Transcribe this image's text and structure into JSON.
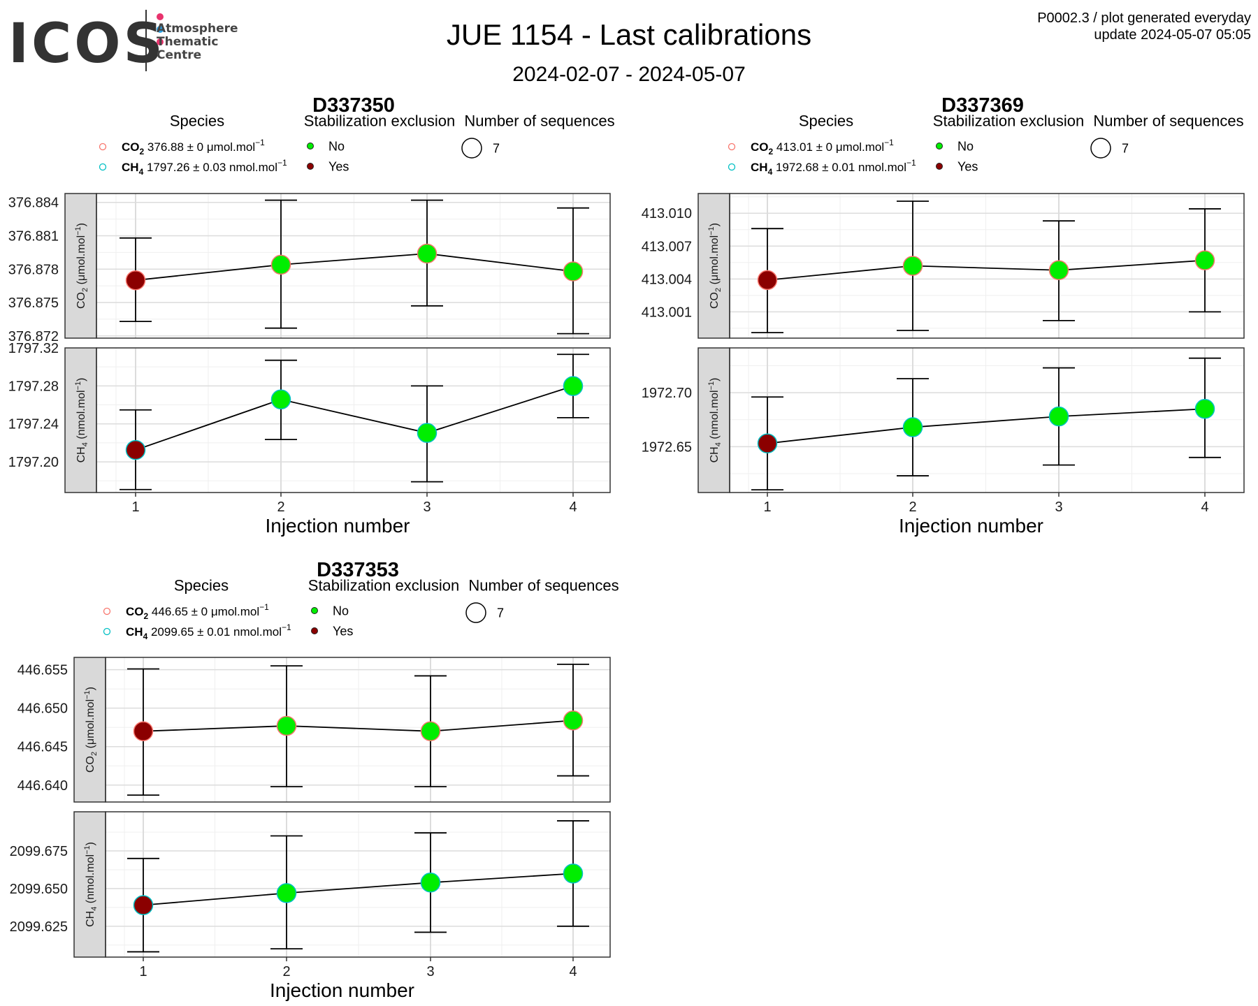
{
  "header": {
    "logo_text": "ICOS",
    "logo_subtitle": [
      "Atmosphere",
      "Thematic",
      "Centre"
    ],
    "title": "JUE 1154 - Last calibrations",
    "subtitle": "2024-02-07 - 2024-05-07",
    "meta_line1": "P0002.3 / plot generated everyday",
    "meta_line2": "update  2024-05-07 05:05"
  },
  "colors": {
    "logo_dots": [
      "#e8336d",
      "#2a9ee0",
      "#e8336d"
    ],
    "not_excluded": "#00ee00",
    "excluded": "#8b0000",
    "co2_ring": "#f8766d",
    "ch4_ring": "#00bfc4"
  },
  "legend_text": {
    "species_title": "Species",
    "stab_title": "Stabilization exclusion",
    "nseq_title": "Number of sequences",
    "stab_no": "No",
    "stab_yes": "Yes",
    "co2_name": "CO",
    "co2_sub": "2",
    "ch4_name": "CH",
    "ch4_sub": "4",
    "co2_axis_label": "CO",
    "co2_axis_unit": " (μmol.mol",
    "ch4_axis_unit": " (nmol.mol",
    "sup": "−1",
    "close": ")",
    "unit_sup": "−1",
    "xlabel": "Injection number"
  },
  "chart_data": [
    {
      "type": "scatter",
      "cylinder": "D337350",
      "legend": {
        "co2_value": "376.88 ± 0 μmol.mol",
        "ch4_value": "1797.26 ± 0.03 nmol.mol",
        "nseq": "7"
      },
      "x": [
        1,
        2,
        3,
        4
      ],
      "xlabel": "Injection number",
      "co2": {
        "ylabel": "CO2 (μmol.mol−1)",
        "yticks": [
          "376.872",
          "376.875",
          "376.878",
          "376.881",
          "376.884"
        ],
        "ylim": [
          376.8718,
          376.8848
        ],
        "y": [
          376.877,
          376.8784,
          376.8794,
          376.8778
        ],
        "err_low": [
          376.8733,
          376.8727,
          376.8747,
          376.8722
        ],
        "err_high": [
          376.8808,
          376.8842,
          376.8842,
          376.8835
        ],
        "excluded": [
          true,
          false,
          false,
          false
        ]
      },
      "ch4": {
        "ylabel": "CH4 (nmol.mol−1)",
        "yticks": [
          "1797.20",
          "1797.24",
          "1797.28",
          "1797.32"
        ],
        "ylim": [
          1797.1677,
          1797.32
        ],
        "y": [
          1797.2125,
          1797.2657,
          1797.2305,
          1797.2798
        ],
        "err_low": [
          1797.1708,
          1797.2235,
          1797.179,
          1797.2465
        ],
        "err_high": [
          1797.2547,
          1797.307,
          1797.28,
          1797.3132
        ],
        "excluded": [
          true,
          false,
          false,
          false
        ]
      }
    },
    {
      "type": "scatter",
      "cylinder": "D337369",
      "legend": {
        "co2_value": "413.01 ± 0 μmol.mol",
        "ch4_value": "1972.68 ± 0.01 nmol.mol",
        "nseq": "7"
      },
      "x": [
        1,
        2,
        3,
        4
      ],
      "xlabel": "Injection number",
      "co2": {
        "ylabel": "CO2 (μmol.mol−1)",
        "yticks": [
          "413.001",
          "413.004",
          "413.007",
          "413.010"
        ],
        "ylim": [
          412.9986,
          413.0118
        ],
        "y": [
          413.0039,
          413.0052,
          413.0048,
          413.0057
        ],
        "err_low": [
          412.9991,
          412.9993,
          413.0002,
          413.001
        ],
        "err_high": [
          413.0086,
          413.0111,
          413.0093,
          413.0104
        ],
        "excluded": [
          true,
          false,
          false,
          false
        ]
      },
      "ch4": {
        "ylabel": "CH4 (nmol.mol−1)",
        "yticks": [
          "1972.65",
          "1972.70"
        ],
        "ylim": [
          1972.6075,
          1972.7415
        ],
        "y": [
          1972.653,
          1972.668,
          1972.678,
          1972.685
        ],
        "err_low": [
          1972.61,
          1972.623,
          1972.633,
          1972.64
        ],
        "err_high": [
          1972.696,
          1972.713,
          1972.723,
          1972.732
        ],
        "excluded": [
          true,
          false,
          false,
          false
        ]
      }
    },
    {
      "type": "scatter",
      "cylinder": "D337353",
      "legend": {
        "co2_value": "446.65 ± 0 μmol.mol",
        "ch4_value": "2099.65 ± 0.01 nmol.mol",
        "nseq": "7"
      },
      "x": [
        1,
        2,
        3,
        4
      ],
      "xlabel": "Injection number",
      "co2": {
        "ylabel": "CO2 (μmol.mol−1)",
        "yticks": [
          "446.640",
          "446.645",
          "446.650",
          "446.655"
        ],
        "ylim": [
          446.6378,
          446.6566
        ],
        "y": [
          446.647,
          446.6477,
          446.647,
          446.6484
        ],
        "err_low": [
          446.6387,
          446.6398,
          446.6398,
          446.6412
        ],
        "err_high": [
          446.6551,
          446.6555,
          446.6542,
          446.6557
        ],
        "excluded": [
          true,
          false,
          false,
          false
        ]
      },
      "ch4": {
        "ylabel": "CH4 (nmol.mol−1)",
        "yticks": [
          "2099.625",
          "2099.650",
          "2099.675"
        ],
        "ylim": [
          2099.6045,
          2099.701
        ],
        "y": [
          2099.639,
          2099.647,
          2099.654,
          2099.66
        ],
        "err_low": [
          2099.608,
          2099.61,
          2099.621,
          2099.625
        ],
        "err_high": [
          2099.67,
          2099.685,
          2099.687,
          2099.695
        ],
        "excluded": [
          true,
          false,
          false,
          false
        ]
      }
    }
  ]
}
